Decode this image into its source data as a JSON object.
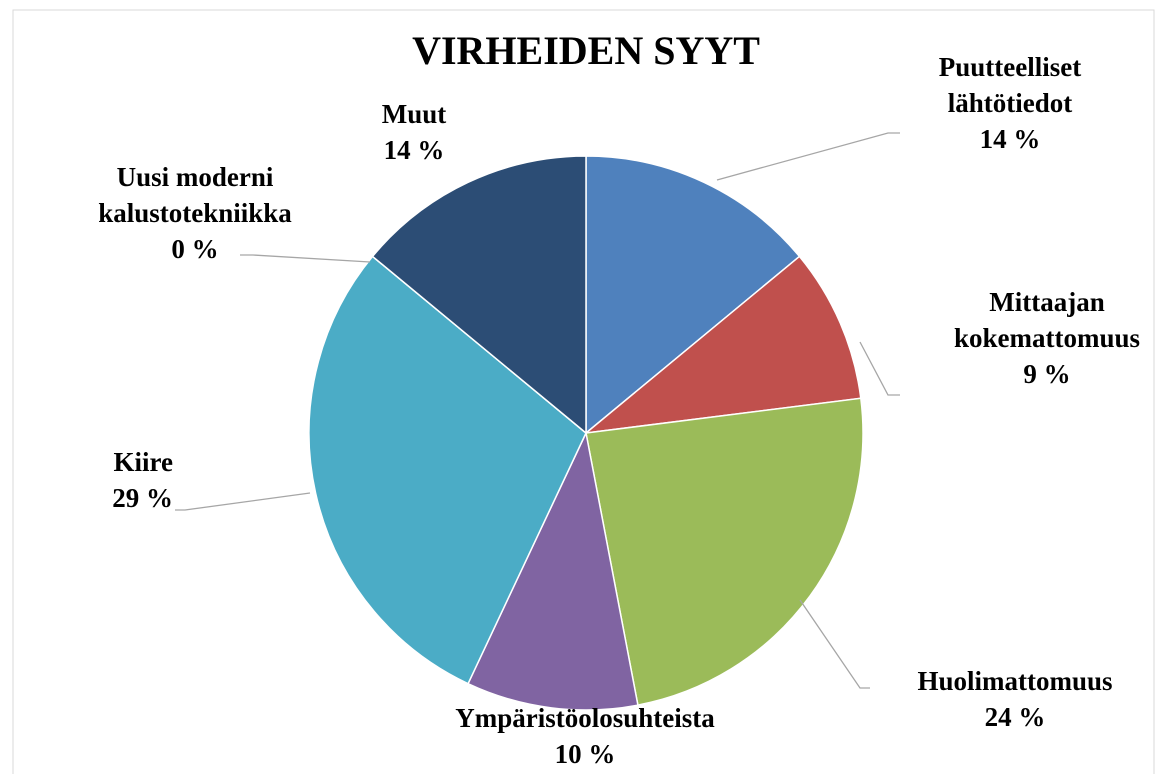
{
  "chart_data": {
    "type": "pie",
    "title": "VIRHEIDEN SYYT",
    "categories": [
      "Puutteelliset\nlähtötiedot",
      "Mittaajan\nkokemattomuus",
      "Huolimattomuus",
      "Ympäristöolosuhteista",
      "Kiire",
      "Uusi moderni\nkalustotekniikka",
      "Muut"
    ],
    "values": [
      14,
      9,
      24,
      10,
      29,
      0,
      14
    ],
    "value_labels": [
      "14 %",
      "9 %",
      "24 %",
      "10 %",
      "29 %",
      "0 %",
      "14 %"
    ],
    "colors": [
      "#4f81bd",
      "#c0504d",
      "#9bbb59",
      "#8064a2",
      "#4bacc6",
      "#f79646",
      "#2c4d75"
    ]
  }
}
